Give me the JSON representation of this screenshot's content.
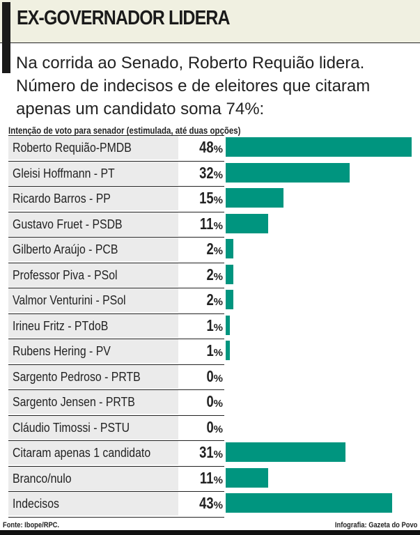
{
  "header": {
    "title": "EX-GOVERNADOR LIDERA",
    "subtitle": "Na corrida ao Senado, Roberto Requião lidera. Número de indecisos e de eleitores que citaram apenas um candidato soma 74%:"
  },
  "chart_data": {
    "type": "bar",
    "orientation": "horizontal",
    "title": "Intenção de voto para senador (estimulada, até duas opções)",
    "categories": [
      "Roberto Requião-PMDB",
      "Gleisi Hoffmann - PT",
      "Ricardo Barros - PP",
      "Gustavo Fruet - PSDB",
      "Gilberto Araújo - PCB",
      "Professor Piva - PSol",
      "Valmor Venturini - PSol",
      "Irineu Fritz - PTdoB",
      "Rubens Hering - PV",
      "Sargento Pedroso - PRTB",
      "Sargento Jensen - PRTB",
      "Cláudio Timossi - PSTU",
      "Citaram apenas 1 candidato",
      "Branco/nulo",
      "Indecisos"
    ],
    "values": [
      48,
      32,
      15,
      11,
      2,
      2,
      2,
      1,
      1,
      0,
      0,
      0,
      31,
      11,
      43
    ],
    "value_labels": [
      "48",
      "32",
      "15",
      "11",
      "2",
      "2",
      "2",
      "1",
      "1",
      "0",
      "0",
      "0",
      "31",
      "11",
      "43"
    ],
    "unit": "%",
    "bar_color": "#00957f",
    "grid": false
  },
  "footer": {
    "source": "Fonte: Ibope/RPC.",
    "credit": "Infografia: Gazeta do Povo"
  }
}
